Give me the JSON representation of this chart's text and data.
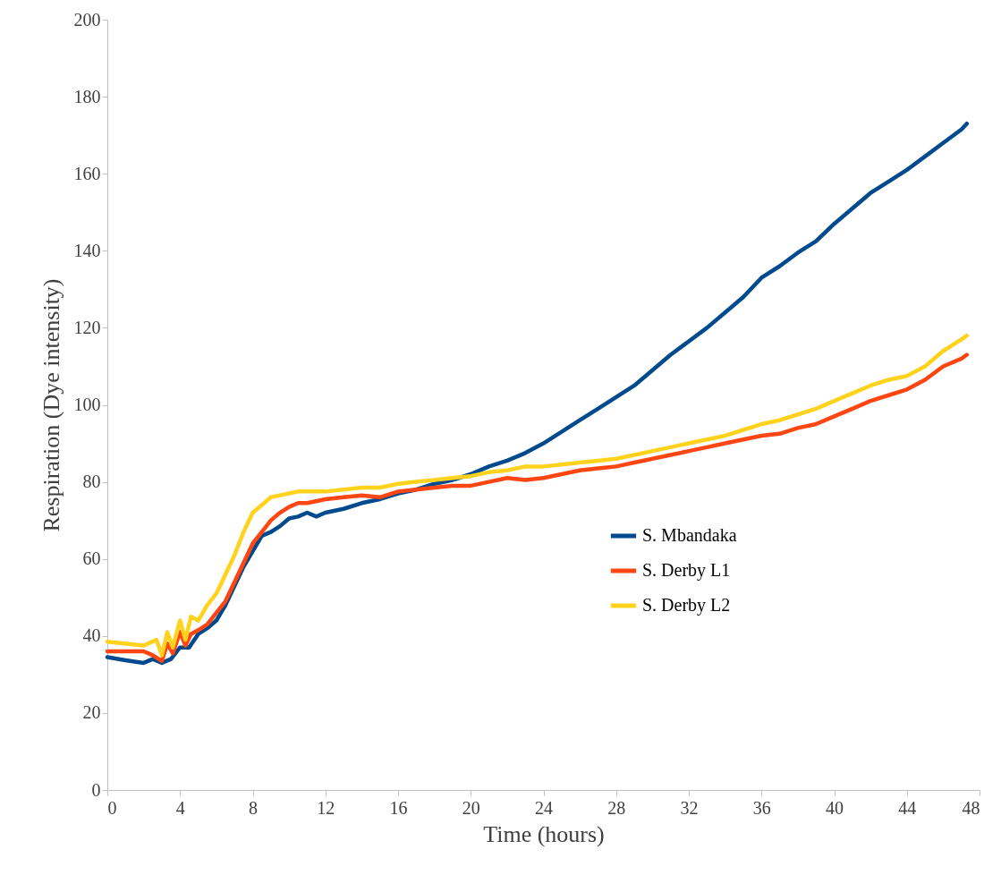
{
  "chart_data": {
    "type": "line",
    "xlabel": "Time (hours)",
    "ylabel": "Respiration (Dye intensity)",
    "xlim": [
      0,
      48
    ],
    "xticks": [
      0,
      4,
      8,
      12,
      16,
      20,
      24,
      28,
      32,
      36,
      40,
      44,
      48
    ],
    "ylim": [
      0,
      200
    ],
    "yticks": [
      0,
      20,
      40,
      60,
      80,
      100,
      120,
      140,
      160,
      180,
      200
    ],
    "grid": false,
    "legend": "right",
    "marker": "none",
    "line_style": "solid",
    "series": [
      {
        "name": "S. Mbandaka",
        "color": "#004a8d",
        "x": [
          0,
          1,
          2,
          2.5,
          3,
          3.5,
          4,
          4.5,
          5,
          5.5,
          6,
          6.5,
          7,
          7.5,
          8,
          8.5,
          9,
          9.5,
          10,
          10.5,
          11,
          11.5,
          12,
          13,
          14,
          15,
          16,
          17,
          18,
          19,
          20,
          21,
          22,
          23,
          24,
          25,
          26,
          27,
          28,
          29,
          30,
          31,
          32,
          33,
          34,
          35,
          36,
          37,
          38,
          39,
          40,
          41,
          42,
          43,
          44,
          45,
          46,
          47,
          47.3
        ],
        "values": [
          34.5,
          33.7,
          33,
          34,
          33,
          34,
          37,
          37,
          40.5,
          42,
          44,
          48,
          53,
          58,
          62,
          66,
          67,
          68.5,
          70.5,
          71,
          72,
          71,
          72,
          73,
          74.5,
          75.5,
          77,
          78,
          79.5,
          80.5,
          82,
          84,
          85.5,
          87.5,
          90,
          93,
          96,
          99,
          102,
          105,
          109,
          113,
          116.5,
          120,
          124,
          128,
          133,
          136,
          139.5,
          142.5,
          147,
          151,
          155,
          158,
          161,
          164.5,
          168,
          171.5,
          173
        ]
      },
      {
        "name": "S. Derby L1",
        "color": "#ff4612",
        "x": [
          0,
          2,
          2.5,
          3,
          3.3,
          3.6,
          4,
          4.3,
          4.6,
          5,
          5.5,
          6,
          6.5,
          7,
          7.5,
          8,
          8.5,
          9,
          9.5,
          10,
          10.5,
          11,
          12,
          13,
          14,
          15,
          16,
          17,
          18,
          19,
          20,
          21,
          22,
          23,
          24,
          25,
          26,
          27,
          28,
          29,
          30,
          31,
          32,
          33,
          34,
          35,
          36,
          37,
          38,
          39,
          40,
          41,
          42,
          43,
          44,
          45,
          46,
          47,
          47.3
        ],
        "values": [
          36,
          36,
          35,
          33.5,
          38,
          35.5,
          41,
          37.5,
          40.5,
          41.5,
          43,
          46,
          49,
          54,
          59,
          64,
          67,
          70,
          72,
          73.5,
          74.5,
          74.5,
          75.5,
          76,
          76.5,
          76,
          77.5,
          78,
          78.5,
          79,
          79,
          80,
          81,
          80.5,
          81,
          82,
          83,
          83.5,
          84,
          85,
          86,
          87,
          88,
          89,
          90,
          91,
          92,
          92.5,
          94,
          95,
          97,
          99,
          101,
          102.5,
          104,
          106.5,
          110,
          112,
          113
        ]
      },
      {
        "name": "S. Derby L2",
        "color": "#ffd21e",
        "x": [
          0,
          2,
          2.7,
          3,
          3.3,
          3.6,
          4,
          4.3,
          4.6,
          5,
          5.5,
          6,
          6.5,
          7,
          7.5,
          8,
          8.5,
          9,
          9.5,
          10,
          10.5,
          11,
          12,
          13,
          14,
          15,
          16,
          17,
          18,
          19,
          20,
          21,
          22,
          23,
          24,
          25,
          26,
          27,
          28,
          29,
          30,
          31,
          32,
          33,
          34,
          35,
          36,
          37,
          38,
          39,
          40,
          41,
          42,
          43,
          44,
          45,
          46,
          47,
          47.3
        ],
        "values": [
          38.5,
          37.5,
          39,
          35,
          41,
          37,
          44,
          39,
          45,
          44,
          48,
          51,
          56,
          61,
          67,
          72,
          74,
          76,
          76.5,
          77,
          77.5,
          77.5,
          77.5,
          78,
          78.5,
          78.5,
          79.5,
          80,
          80.5,
          81,
          81.5,
          82.5,
          83,
          84,
          84,
          84.5,
          85,
          85.5,
          86,
          87,
          88,
          89,
          90,
          91,
          92,
          93.5,
          95,
          96,
          97.5,
          99,
          101,
          103,
          105,
          106.5,
          107.5,
          110,
          114,
          117,
          118
        ]
      }
    ]
  }
}
